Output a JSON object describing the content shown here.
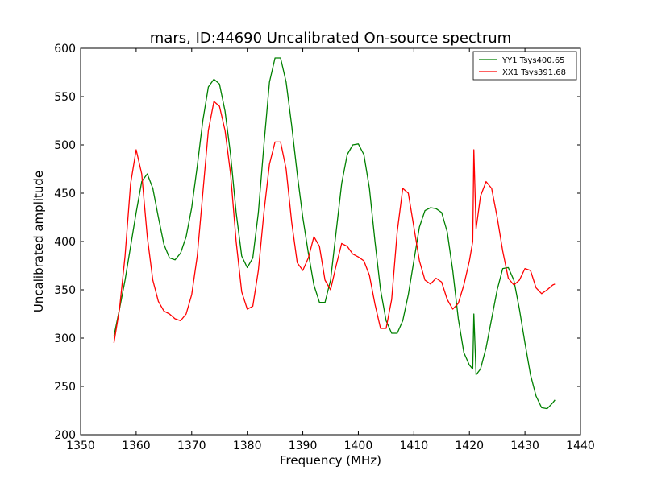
{
  "chart_data": {
    "type": "line",
    "title": "mars, ID:44690 Uncalibrated On-source spectrum",
    "xlabel": "Frequency (MHz)",
    "ylabel": "Uncalibrated amplitude",
    "xlim": [
      1350,
      1440
    ],
    "ylim": [
      200,
      600
    ],
    "xticks": [
      1350,
      1360,
      1370,
      1380,
      1390,
      1400,
      1410,
      1420,
      1430,
      1440
    ],
    "yticks": [
      200,
      250,
      300,
      350,
      400,
      450,
      500,
      550,
      600
    ],
    "grid": false,
    "legend_position": "top-right",
    "series": [
      {
        "name": "YY1 Tsys400.65",
        "color": "#008000",
        "points": [
          [
            1356.0,
            302
          ],
          [
            1357.0,
            330
          ],
          [
            1358.0,
            360
          ],
          [
            1359.0,
            395
          ],
          [
            1360.0,
            430
          ],
          [
            1361.0,
            462
          ],
          [
            1362.0,
            470
          ],
          [
            1363.0,
            455
          ],
          [
            1364.0,
            425
          ],
          [
            1365.0,
            397
          ],
          [
            1366.0,
            383
          ],
          [
            1367.0,
            381
          ],
          [
            1368.0,
            388
          ],
          [
            1369.0,
            405
          ],
          [
            1370.0,
            435
          ],
          [
            1371.0,
            478
          ],
          [
            1372.0,
            525
          ],
          [
            1373.0,
            560
          ],
          [
            1374.0,
            568
          ],
          [
            1375.0,
            563
          ],
          [
            1376.0,
            535
          ],
          [
            1377.0,
            490
          ],
          [
            1378.0,
            430
          ],
          [
            1379.0,
            385
          ],
          [
            1380.0,
            373
          ],
          [
            1381.0,
            383
          ],
          [
            1382.0,
            430
          ],
          [
            1383.0,
            500
          ],
          [
            1384.0,
            565
          ],
          [
            1385.0,
            590
          ],
          [
            1386.0,
            590
          ],
          [
            1387.0,
            565
          ],
          [
            1388.0,
            520
          ],
          [
            1389.0,
            470
          ],
          [
            1390.0,
            425
          ],
          [
            1391.0,
            388
          ],
          [
            1392.0,
            355
          ],
          [
            1393.0,
            337
          ],
          [
            1394.0,
            337
          ],
          [
            1395.0,
            360
          ],
          [
            1396.0,
            410
          ],
          [
            1397.0,
            460
          ],
          [
            1398.0,
            490
          ],
          [
            1399.0,
            500
          ],
          [
            1400.0,
            501
          ],
          [
            1401.0,
            490
          ],
          [
            1402.0,
            455
          ],
          [
            1403.0,
            400
          ],
          [
            1404.0,
            350
          ],
          [
            1405.0,
            318
          ],
          [
            1406.0,
            305
          ],
          [
            1407.0,
            305
          ],
          [
            1408.0,
            318
          ],
          [
            1409.0,
            345
          ],
          [
            1410.0,
            380
          ],
          [
            1411.0,
            415
          ],
          [
            1412.0,
            432
          ],
          [
            1413.0,
            435
          ],
          [
            1414.0,
            434
          ],
          [
            1415.0,
            430
          ],
          [
            1416.0,
            410
          ],
          [
            1417.0,
            370
          ],
          [
            1418.0,
            320
          ],
          [
            1419.0,
            285
          ],
          [
            1420.0,
            272
          ],
          [
            1420.6,
            268
          ],
          [
            1420.8,
            325
          ],
          [
            1421.2,
            262
          ],
          [
            1422.0,
            268
          ],
          [
            1423.0,
            290
          ],
          [
            1424.0,
            320
          ],
          [
            1425.0,
            350
          ],
          [
            1426.0,
            372
          ],
          [
            1427.0,
            373
          ],
          [
            1428.0,
            360
          ],
          [
            1429.0,
            330
          ],
          [
            1430.0,
            295
          ],
          [
            1431.0,
            262
          ],
          [
            1432.0,
            240
          ],
          [
            1433.0,
            228
          ],
          [
            1434.0,
            227
          ],
          [
            1435.0,
            233
          ],
          [
            1435.4,
            236
          ]
        ]
      },
      {
        "name": "XX1 Tsys391.68",
        "color": "#ff0000",
        "points": [
          [
            1356.0,
            295
          ],
          [
            1357.0,
            330
          ],
          [
            1358.0,
            385
          ],
          [
            1359.0,
            460
          ],
          [
            1360.0,
            495
          ],
          [
            1361.0,
            470
          ],
          [
            1362.0,
            405
          ],
          [
            1363.0,
            360
          ],
          [
            1364.0,
            338
          ],
          [
            1365.0,
            328
          ],
          [
            1366.0,
            325
          ],
          [
            1367.0,
            320
          ],
          [
            1368.0,
            318
          ],
          [
            1369.0,
            325
          ],
          [
            1370.0,
            345
          ],
          [
            1371.0,
            385
          ],
          [
            1372.0,
            450
          ],
          [
            1373.0,
            515
          ],
          [
            1374.0,
            545
          ],
          [
            1375.0,
            540
          ],
          [
            1376.0,
            515
          ],
          [
            1377.0,
            470
          ],
          [
            1378.0,
            400
          ],
          [
            1379.0,
            348
          ],
          [
            1380.0,
            330
          ],
          [
            1381.0,
            333
          ],
          [
            1382.0,
            370
          ],
          [
            1383.0,
            430
          ],
          [
            1384.0,
            480
          ],
          [
            1385.0,
            503
          ],
          [
            1386.0,
            503
          ],
          [
            1387.0,
            475
          ],
          [
            1388.0,
            420
          ],
          [
            1389.0,
            378
          ],
          [
            1390.0,
            370
          ],
          [
            1391.0,
            383
          ],
          [
            1392.0,
            405
          ],
          [
            1393.0,
            395
          ],
          [
            1394.0,
            360
          ],
          [
            1395.0,
            350
          ],
          [
            1396.0,
            375
          ],
          [
            1397.0,
            398
          ],
          [
            1398.0,
            395
          ],
          [
            1399.0,
            387
          ],
          [
            1400.0,
            384
          ],
          [
            1401.0,
            380
          ],
          [
            1402.0,
            365
          ],
          [
            1403.0,
            335
          ],
          [
            1404.0,
            310
          ],
          [
            1405.0,
            310
          ],
          [
            1406.0,
            340
          ],
          [
            1407.0,
            410
          ],
          [
            1408.0,
            455
          ],
          [
            1409.0,
            450
          ],
          [
            1410.0,
            415
          ],
          [
            1411.0,
            380
          ],
          [
            1412.0,
            360
          ],
          [
            1413.0,
            356
          ],
          [
            1414.0,
            362
          ],
          [
            1415.0,
            358
          ],
          [
            1416.0,
            340
          ],
          [
            1417.0,
            330
          ],
          [
            1418.0,
            336
          ],
          [
            1419.0,
            355
          ],
          [
            1420.0,
            380
          ],
          [
            1420.6,
            400
          ],
          [
            1420.8,
            495
          ],
          [
            1421.2,
            413
          ],
          [
            1422.0,
            447
          ],
          [
            1423.0,
            462
          ],
          [
            1424.0,
            455
          ],
          [
            1425.0,
            425
          ],
          [
            1426.0,
            390
          ],
          [
            1427.0,
            362
          ],
          [
            1428.0,
            355
          ],
          [
            1429.0,
            360
          ],
          [
            1430.0,
            372
          ],
          [
            1431.0,
            370
          ],
          [
            1432.0,
            352
          ],
          [
            1433.0,
            346
          ],
          [
            1434.0,
            350
          ],
          [
            1435.0,
            355
          ],
          [
            1435.4,
            356
          ]
        ]
      }
    ]
  }
}
